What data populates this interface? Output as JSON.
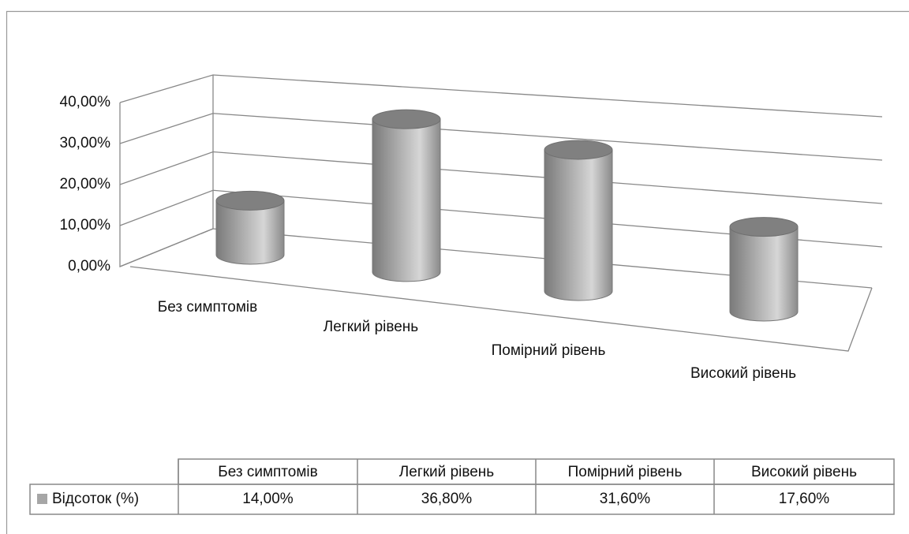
{
  "chart_data": {
    "type": "bar3d",
    "categories": [
      "Без симптомів",
      "Легкий рівень",
      "Помірний рівень",
      "Високий рівень"
    ],
    "series": [
      {
        "name": "Відсоток (%)",
        "color": "#a6a6a6",
        "values": [
          14,
          36.8,
          31.6,
          17.6
        ],
        "value_labels": [
          "14,00%",
          "36,80%",
          "31,60%",
          "17,60%"
        ]
      }
    ],
    "ylim": [
      0,
      40
    ],
    "yticks": [
      {
        "value": 0,
        "label": "0,00%"
      },
      {
        "value": 10,
        "label": "10,00%"
      },
      {
        "value": 20,
        "label": "20,00%"
      },
      {
        "value": 30,
        "label": "30,00%"
      },
      {
        "value": 40,
        "label": "40,00%"
      }
    ],
    "grid": true,
    "data_table": true
  }
}
